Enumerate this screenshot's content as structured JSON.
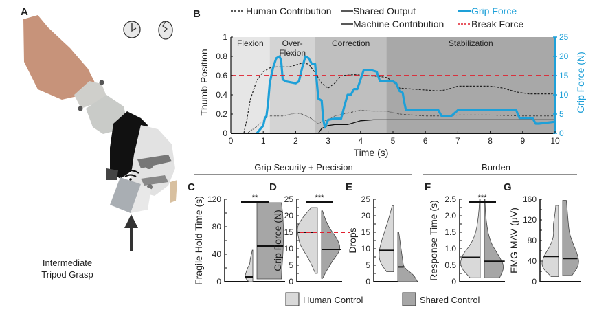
{
  "panels": {
    "A": {
      "label": "A",
      "caption_line1": "Intermediate",
      "caption_line2": "Tripod Grasp",
      "icons": [
        "clock-icon",
        "cracked-egg-icon",
        "wireless-signal-icon",
        "arrow-up-icon"
      ]
    },
    "section_titles": {
      "grip": "Grip Security + Precision",
      "burden": "Burden"
    },
    "bottom_legend": [
      {
        "label": "Human Control",
        "color": "#d9d9d9"
      },
      {
        "label": "Shared Control",
        "color": "#a6a6a6"
      }
    ]
  },
  "colors": {
    "grip_force": "#1ea0d8",
    "break_force": "#e0202e",
    "human": "#d9d9d9",
    "shared": "#a6a6a6",
    "phase_flexion": "#e6e6e6",
    "phase_overflexion": "#d4d4d4",
    "phase_correction": "#bfbfbf",
    "phase_stabilization": "#a8a8a8"
  },
  "chart_data": [
    {
      "id": "B",
      "panel_label": "B",
      "type": "line",
      "title": "",
      "xlabel": "Time (s)",
      "ylabel": "Thumb Position",
      "y2label": "Grip Force (N)",
      "xlim": [
        0,
        10
      ],
      "ylim": [
        0,
        1
      ],
      "y2lim": [
        0,
        25
      ],
      "xticks": [
        "0",
        "1",
        "2",
        "3",
        "4",
        "5",
        "6",
        "7",
        "8",
        "9",
        "10"
      ],
      "yticks": [
        "0",
        "0.2",
        "0.4",
        "0.6",
        "0.8",
        "1"
      ],
      "y2ticks": [
        "0",
        "5",
        "10",
        "15",
        "20",
        "25"
      ],
      "legend": [
        {
          "label": "Human Contribution",
          "style": "dashed",
          "color": "#222222"
        },
        {
          "label": "Shared Output",
          "style": "solid",
          "color": "#222222"
        },
        {
          "label": "Grip Force",
          "style": "thick",
          "color": "#1ea0d8"
        },
        {
          "label": "Machine Contribution",
          "style": "solid",
          "color": "#222222"
        },
        {
          "label": "Break Force",
          "style": "dashed",
          "color": "#e0202e"
        }
      ],
      "phases": [
        {
          "label": "Flexion",
          "start": 0,
          "end": 1.2
        },
        {
          "label": "Over-\nFlexion",
          "label_line1": "Over-",
          "label_line2": "Flexion",
          "start": 1.2,
          "end": 2.6
        },
        {
          "label": "Correction",
          "start": 2.6,
          "end": 4.8
        },
        {
          "label": "Stabilization",
          "start": 4.8,
          "end": 10
        }
      ],
      "series": [
        {
          "name": "Human Contribution",
          "axis": "left",
          "x": [
            0.4,
            0.5,
            0.6,
            0.8,
            1.0,
            1.2,
            1.4,
            1.8,
            2.0,
            2.2,
            2.4,
            2.6,
            2.8,
            3.0,
            3.2,
            3.4,
            3.8,
            4.2,
            4.6,
            4.8,
            5.0,
            5.2,
            5.6,
            6.0,
            6.4,
            6.6,
            7.0,
            7.6,
            8.0,
            8.4,
            8.8,
            9.2,
            9.6,
            9.9,
            10
          ],
          "y": [
            0,
            0.15,
            0.35,
            0.55,
            0.64,
            0.68,
            0.69,
            0.69,
            0.71,
            0.73,
            0.72,
            0.63,
            0.52,
            0.47,
            0.52,
            0.6,
            0.61,
            0.6,
            0.59,
            0.58,
            0.54,
            0.47,
            0.46,
            0.45,
            0.44,
            0.45,
            0.49,
            0.49,
            0.49,
            0.47,
            0.43,
            0.41,
            0.41,
            0.41,
            0.43
          ]
        },
        {
          "name": "Shared Output",
          "axis": "left",
          "x": [
            0.5,
            0.8,
            1.0,
            1.2,
            1.6,
            2.0,
            2.2,
            2.5,
            2.7,
            2.8,
            3.0,
            3.2,
            3.6,
            4.0,
            4.4,
            4.8,
            5.2,
            5.6,
            6.0,
            6.6,
            7.0,
            8.0,
            9.0,
            10
          ],
          "y": [
            0,
            0.07,
            0.14,
            0.18,
            0.18,
            0.21,
            0.2,
            0.15,
            0.1,
            0.12,
            0.14,
            0.18,
            0.21,
            0.24,
            0.23,
            0.23,
            0.2,
            0.19,
            0.18,
            0.18,
            0.19,
            0.19,
            0.18,
            0.18
          ]
        },
        {
          "name": "Machine Contribution",
          "axis": "left",
          "x": [
            2.7,
            2.8,
            3.0,
            3.2,
            3.6,
            4.0,
            4.4,
            5.0,
            6.0,
            7.0,
            8.0,
            9.0,
            10
          ],
          "y": [
            0,
            0.05,
            0.08,
            0.09,
            0.09,
            0.13,
            0.14,
            0.14,
            0.14,
            0.14,
            0.14,
            0.14,
            0.14
          ]
        },
        {
          "name": "Grip Force",
          "axis": "right",
          "x": [
            0.8,
            0.9,
            1.0,
            1.05,
            1.1,
            1.15,
            1.2,
            1.3,
            1.4,
            1.5,
            1.55,
            1.6,
            1.7,
            2.0,
            2.1,
            2.2,
            2.3,
            2.4,
            2.5,
            2.6,
            2.7,
            2.8,
            2.85,
            2.9,
            3.0,
            3.2,
            3.4,
            3.5,
            3.6,
            3.7,
            3.8,
            3.9,
            4.0,
            4.1,
            4.3,
            4.5,
            4.6,
            4.8,
            5.0,
            5.1,
            5.2,
            5.3,
            5.35,
            5.4,
            6.0,
            6.4,
            6.5,
            6.8,
            7.0,
            7.5,
            8.0,
            8.8,
            8.9,
            9.3,
            9.4,
            9.5,
            10
          ],
          "y": [
            0,
            1,
            2,
            4,
            4.5,
            8,
            13,
            17,
            19.5,
            20,
            19,
            14,
            13.5,
            13,
            13.5,
            17,
            20,
            19.5,
            18,
            18,
            9,
            8.5,
            3.5,
            1.5,
            3.5,
            3.8,
            3.8,
            7,
            10,
            10,
            11.5,
            11.5,
            14,
            16.5,
            16.5,
            16,
            13.5,
            13.5,
            13.5,
            13,
            11,
            10.5,
            8,
            6,
            6,
            6,
            4.5,
            4.5,
            6,
            6,
            6,
            6,
            4,
            4,
            2.5,
            2.5,
            3
          ]
        },
        {
          "name": "Break Force",
          "axis": "right",
          "x": [
            0,
            10
          ],
          "y": [
            15,
            15
          ]
        }
      ]
    },
    {
      "id": "C",
      "panel_label": "C",
      "type": "violin",
      "ylabel": "Fragile Hold Time (s)",
      "ylim": [
        0,
        120
      ],
      "yticks": [
        "0",
        "40",
        "80",
        "120"
      ],
      "significance": "**",
      "groups": [
        {
          "name": "Human Control",
          "median": 7,
          "min": 0,
          "max": 46
        },
        {
          "name": "Shared Control",
          "median": 52,
          "min": 4,
          "max": 115
        }
      ]
    },
    {
      "id": "D",
      "panel_label": "D",
      "type": "violin",
      "ylabel": "Grip Force (N)",
      "ylim": [
        0,
        25
      ],
      "yticks": [
        "0",
        "5",
        "10",
        "15",
        "20",
        "25"
      ],
      "significance": "***",
      "reference_line": {
        "label": "Break Force",
        "value": 15
      },
      "groups": [
        {
          "name": "Human Control",
          "median": 15,
          "min": 2.5,
          "max": 22.5
        },
        {
          "name": "Shared Control",
          "median": 9.8,
          "min": 1,
          "max": 21.5
        }
      ]
    },
    {
      "id": "E",
      "panel_label": "E",
      "type": "violin",
      "ylabel": "Drops",
      "ylim": [
        0,
        25
      ],
      "yticks": [
        "0",
        "5",
        "10",
        "15",
        "20",
        "25"
      ],
      "significance": "",
      "groups": [
        {
          "name": "Human Control",
          "median": 9.5,
          "min": 3,
          "max": 23
        },
        {
          "name": "Shared Control",
          "median": 4.5,
          "min": 0,
          "max": 15
        }
      ]
    },
    {
      "id": "F",
      "panel_label": "F",
      "type": "violin",
      "ylabel": "Response Time (s)",
      "ylim": [
        0,
        2.5
      ],
      "yticks": [
        "0",
        "0.5",
        "1.0",
        "1.5",
        "2.0",
        "2.5"
      ],
      "significance": "***",
      "groups": [
        {
          "name": "Human Control",
          "median": 0.74,
          "min": 0.12,
          "max": 2.5
        },
        {
          "name": "Shared Control",
          "median": 0.62,
          "min": 0.12,
          "max": 2.5
        }
      ]
    },
    {
      "id": "G",
      "panel_label": "G",
      "type": "violin",
      "ylabel": "EMG MAV (μV)",
      "ylim": [
        0,
        160
      ],
      "yticks": [
        "0",
        "40",
        "80",
        "120",
        "160"
      ],
      "significance": "",
      "groups": [
        {
          "name": "Human Control",
          "median": 49,
          "min": 10,
          "max": 148
        },
        {
          "name": "Shared Control",
          "median": 45,
          "min": 12,
          "max": 158
        }
      ]
    }
  ]
}
